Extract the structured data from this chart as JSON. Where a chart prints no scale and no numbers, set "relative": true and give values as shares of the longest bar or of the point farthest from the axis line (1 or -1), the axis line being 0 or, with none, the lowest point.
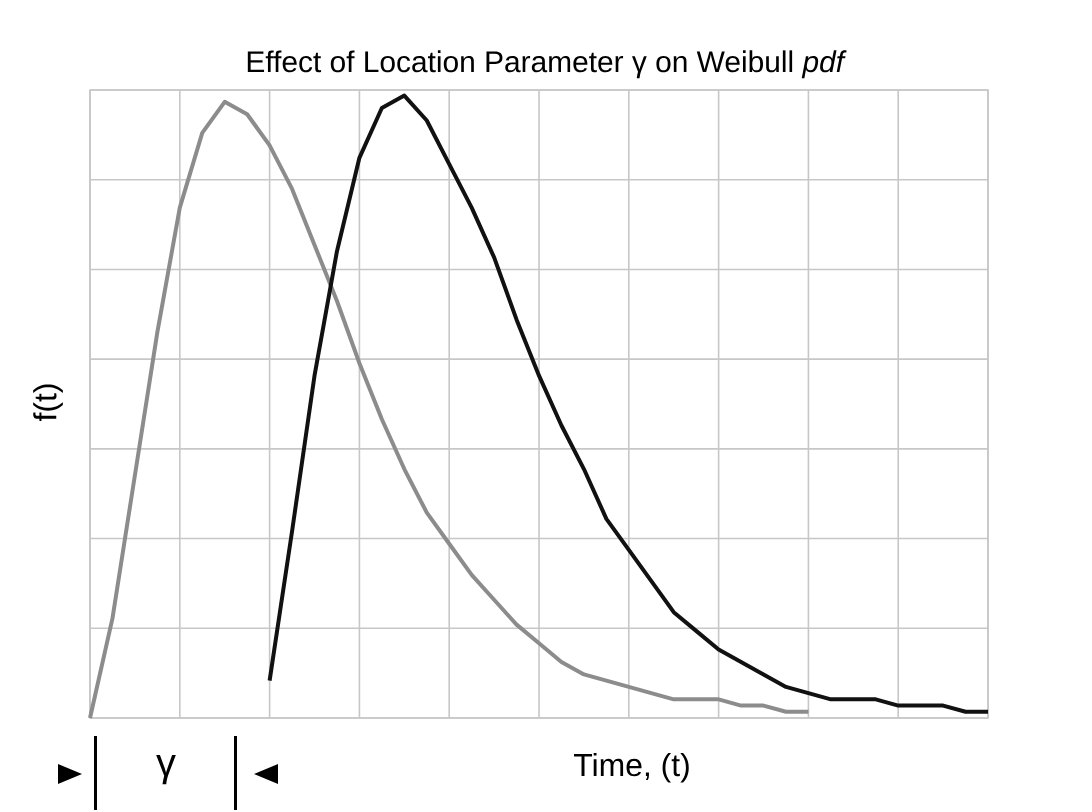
{
  "chart_data": {
    "type": "line",
    "title": "Effect of Location Parameter γ on Weibull *pdf*",
    "xlabel": "Time, (t)",
    "ylabel": "f(t)",
    "relative": true,
    "grid": true,
    "line_style": "solid",
    "marker": "none",
    "categories": [
      null,
      null,
      null,
      null,
      null,
      null,
      null,
      null,
      null,
      null,
      null,
      null,
      null,
      null,
      null,
      null,
      null,
      null,
      null,
      null,
      null,
      null,
      null,
      null,
      null,
      null,
      null,
      null,
      null,
      null,
      null,
      null,
      null,
      null,
      null,
      null,
      null,
      null,
      null,
      null,
      null
    ],
    "annotations": [
      "γ"
    ],
    "series": [
      {
        "color": "#8c8c8c",
        "values": [
          0.0,
          0.16,
          0.39,
          0.62,
          0.82,
          0.94,
          0.99,
          0.97,
          0.92,
          0.85,
          0.76,
          0.67,
          0.57,
          0.48,
          0.4,
          0.33,
          0.28,
          0.23,
          0.19,
          0.15,
          0.12,
          0.09,
          0.07,
          0.06,
          0.05,
          0.04,
          0.03,
          0.03,
          0.03,
          0.02,
          0.02,
          0.01,
          0.01,
          null,
          null,
          null,
          null,
          null,
          null,
          null,
          null
        ]
      },
      {
        "color": "#111111",
        "values": [
          null,
          null,
          null,
          null,
          null,
          null,
          null,
          null,
          0.06,
          0.3,
          0.55,
          0.75,
          0.9,
          0.98,
          1.0,
          0.96,
          0.89,
          0.82,
          0.74,
          0.64,
          0.55,
          0.47,
          0.4,
          0.32,
          0.27,
          0.22,
          0.17,
          0.14,
          0.11,
          0.09,
          0.07,
          0.05,
          0.04,
          0.03,
          0.03,
          0.03,
          0.02,
          0.02,
          0.02,
          0.01,
          0.01
        ]
      }
    ]
  }
}
